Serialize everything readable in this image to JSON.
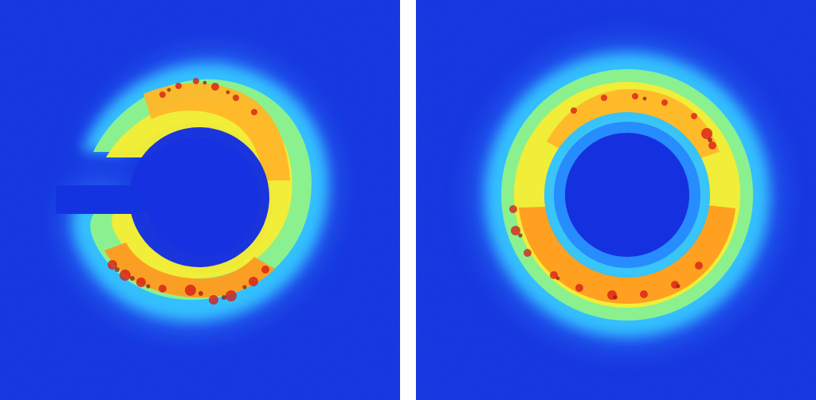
{
  "figure": {
    "panels": [
      {
        "id": "left",
        "subject": "broken-ring",
        "colormap": "jet"
      },
      {
        "id": "right",
        "subject": "closed-ring",
        "colormap": "jet"
      }
    ],
    "colors": {
      "background_blue": "#1433e0",
      "low_blue": "#1f5bff",
      "cyan": "#38c8ff",
      "green": "#6ff08a",
      "yellow": "#f5f03a",
      "orange": "#ff9a1e",
      "red": "#e8241b",
      "dark_red": "#9f1710",
      "separator": "#ffffff"
    }
  }
}
